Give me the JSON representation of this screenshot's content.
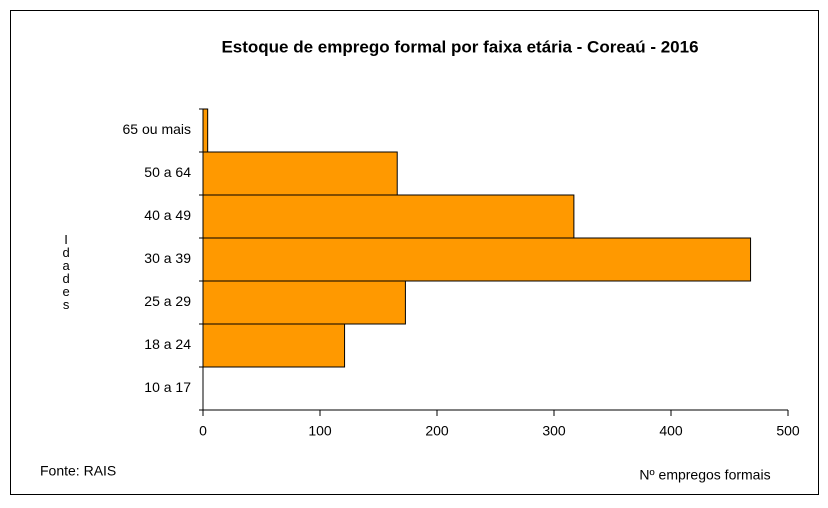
{
  "chart_data": {
    "type": "bar",
    "orientation": "horizontal",
    "title": "Estoque  de emprego formal por faixa etária - Coreaú  - 2016",
    "categories": [
      "10 a 17",
      "18 a 24",
      "25 a 29",
      "30 a 39",
      "40 a 49",
      "50 a 64",
      "65 ou mais"
    ],
    "values": [
      0,
      121,
      173,
      468,
      317,
      166,
      4
    ],
    "color": "#ff9900",
    "xlim": [
      0,
      500
    ],
    "xticks": [
      0,
      100,
      200,
      300,
      400,
      500
    ],
    "y_label": "Idades",
    "x_label": "Nº empregos formais",
    "source": "Fonte: RAIS"
  }
}
